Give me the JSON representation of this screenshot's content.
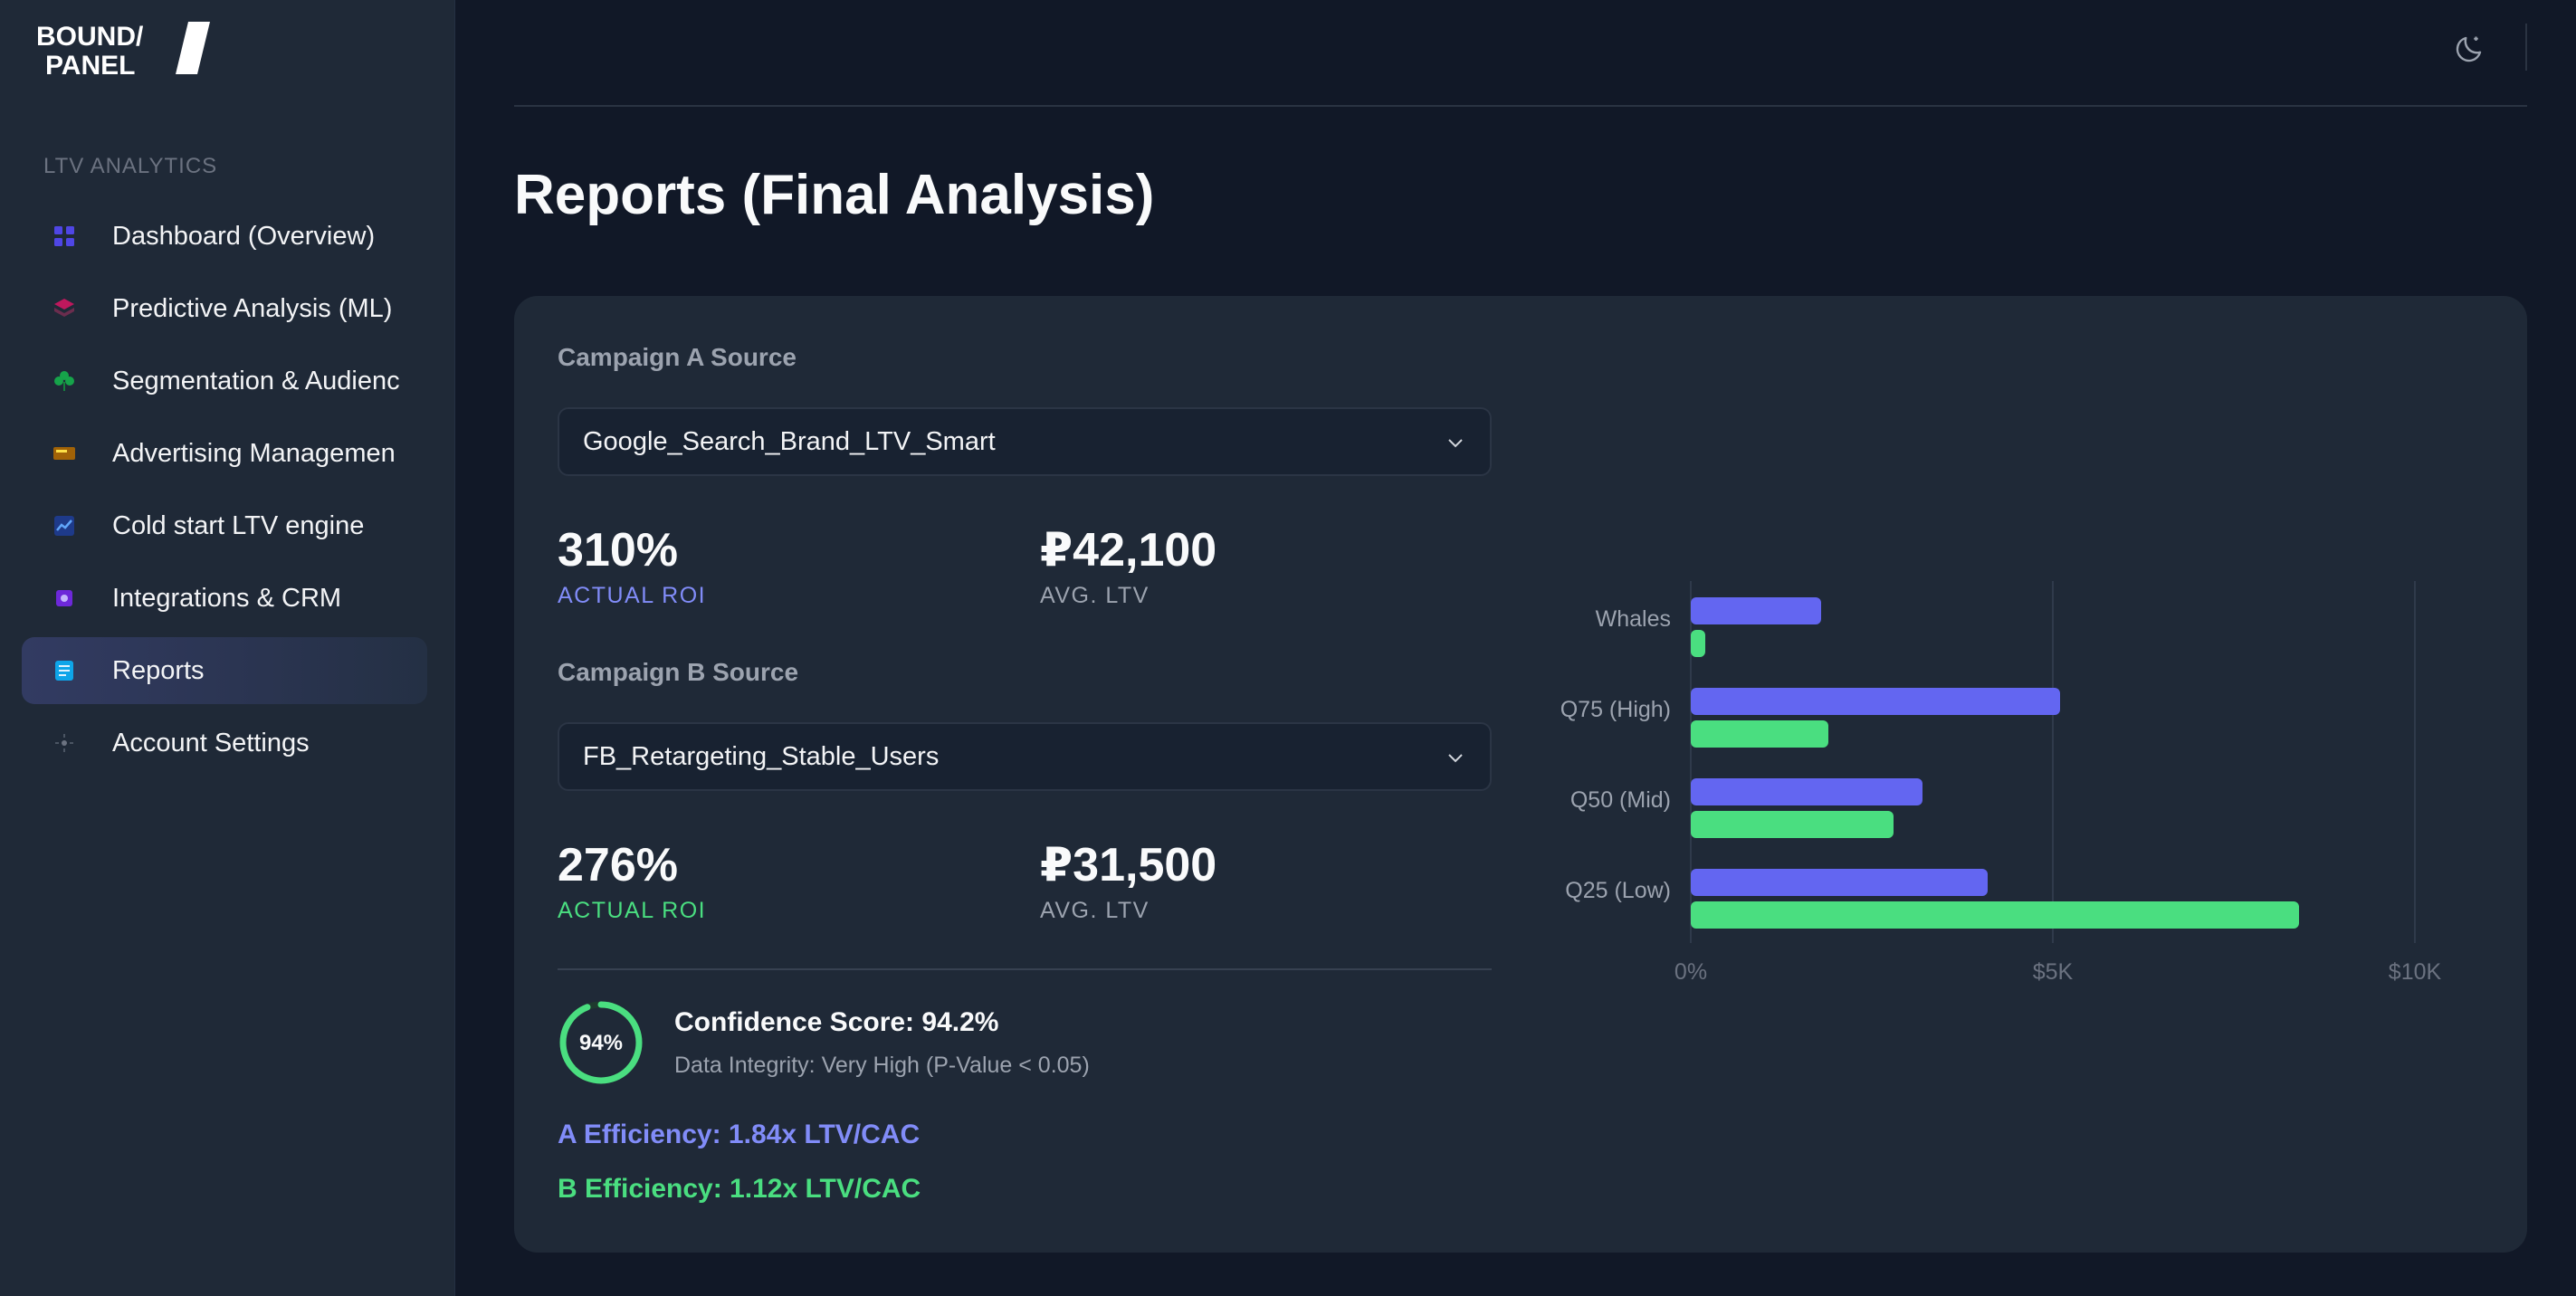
{
  "brand": {
    "line1": "BOUND/",
    "line2": "PANEL"
  },
  "sidebar": {
    "section_label": "LTV ANALYTICS",
    "items": [
      {
        "label": "Dashboard (Overview)",
        "icon": "grid-icon",
        "color": "#4f46e5",
        "active": false
      },
      {
        "label": "Predictive Analysis (ML)",
        "icon": "layers-icon",
        "color": "#db2777",
        "active": false
      },
      {
        "label": "Segmentation & Audienc",
        "icon": "clover-icon",
        "color": "#22c55e",
        "active": false
      },
      {
        "label": "Advertising Managemen",
        "icon": "billboard-icon",
        "color": "#eab308",
        "active": false
      },
      {
        "label": "Cold start LTV engine",
        "icon": "trend-chart-icon",
        "color": "#3b82f6",
        "active": false
      },
      {
        "label": "Integrations & CRM",
        "icon": "chip-icon",
        "color": "#8b5cf6",
        "active": false
      },
      {
        "label": "Reports",
        "icon": "document-icon",
        "color": "#38bdf8",
        "active": true
      },
      {
        "label": "Account Settings",
        "icon": "gear-icon",
        "color": "#9ca3af",
        "active": false
      }
    ]
  },
  "header": {
    "theme_icon": "moon-icon"
  },
  "page": {
    "title": "Reports (Final Analysis)"
  },
  "campaign_a": {
    "label": "Campaign A Source",
    "selected": "Google_Search_Brand_LTV_Smart",
    "roi": "310%",
    "roi_caption": "ACTUAL ROI",
    "ltv": "₽42,100",
    "ltv_caption": "AVG. LTV",
    "color": "#818cf8"
  },
  "campaign_b": {
    "label": "Campaign B Source",
    "selected": "FB_Retargeting_Stable_Users",
    "roi": "276%",
    "roi_caption": "ACTUAL ROI",
    "ltv": "₽31,500",
    "ltv_caption": "AVG. LTV",
    "color": "#4ade80"
  },
  "confidence": {
    "ring_label": "94%",
    "ring_fraction": 0.94,
    "title": "Confidence Score: 94.2%",
    "subtitle": "Data Integrity: Very High (P-Value < 0.05)"
  },
  "efficiency": {
    "a": "A Efficiency: 1.84x LTV/CAC",
    "b": "B Efficiency: 1.12x LTV/CAC"
  },
  "colors": {
    "series_a": "#6366f1",
    "series_b": "#4ade80",
    "accent_green": "#4ade80"
  },
  "chart_data": {
    "type": "bar",
    "orientation": "horizontal",
    "categories": [
      "Whales",
      "Q75 (High)",
      "Q50 (Mid)",
      "Q25 (Low)"
    ],
    "series": [
      {
        "values": [
          1800,
          5100,
          3200,
          4100
        ]
      },
      {
        "values": [
          200,
          1900,
          2800,
          8400
        ]
      }
    ],
    "xlim": [
      0,
      10000
    ],
    "xticks": [
      "0%",
      "$5K",
      "$10K"
    ],
    "grid": true
  }
}
